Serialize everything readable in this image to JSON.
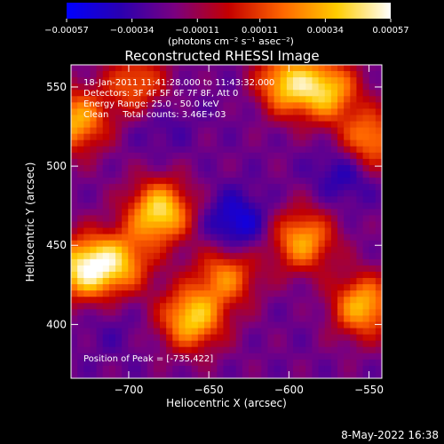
{
  "chart_data": {
    "type": "heatmap",
    "title": "Reconstructed RHESSI Image",
    "xlabel": "Heliocentric X (arcsec)",
    "ylabel": "Heliocentric Y (arcsec)",
    "xlim": [
      -736,
      -542
    ],
    "ylim": [
      366,
      564
    ],
    "x_ticks": [
      -700,
      -650,
      -600,
      -550
    ],
    "y_ticks": [
      400,
      450,
      500,
      550
    ],
    "x_tick_labels": [
      "−700",
      "−650",
      "−600",
      "−550"
    ],
    "y_tick_labels": [
      "400",
      "450",
      "500",
      "550"
    ],
    "colorbar": {
      "range": [
        -0.00057,
        0.00057
      ],
      "ticks": [
        -0.00057,
        -0.00034,
        -0.00011,
        0.00011,
        0.00034,
        0.00057
      ],
      "tick_labels": [
        "−0.00057",
        "−0.00034",
        "−0.00011",
        "0.00011",
        "0.00034",
        "0.00057"
      ],
      "label": "(photons cm⁻² s⁻¹ asec⁻²)",
      "colors": [
        "#0000ff",
        "#2a00b0",
        "#7a0080",
        "#c40000",
        "#ff6600",
        "#ffcc00",
        "#ffffff"
      ]
    },
    "annotations": [
      "18-Jan-2011 11:41:28.000 to 11:43:32.000",
      "Detectors: 3F 4F 5F 6F 7F 8F, Att 0",
      "Energy Range: 25.0 - 50.0 keV",
      "Clean     Total counts: 3.46E+03"
    ],
    "peak_label": "Position of Peak = [-735,422]",
    "peak": [
      -735,
      422
    ],
    "hot_spots": [
      {
        "x": -680,
        "y": 470,
        "value": 0.00057
      },
      {
        "x": -728,
        "y": 434,
        "value": 0.00057
      },
      {
        "x": -660,
        "y": 402,
        "value": 0.0005
      },
      {
        "x": -733,
        "y": 528,
        "value": 0.00042
      },
      {
        "x": -602,
        "y": 552,
        "value": 0.00045
      },
      {
        "x": -575,
        "y": 548,
        "value": 0.00045
      },
      {
        "x": -548,
        "y": 515,
        "value": 0.00038
      },
      {
        "x": -590,
        "y": 452,
        "value": 0.0004
      },
      {
        "x": -552,
        "y": 410,
        "value": 0.00045
      },
      {
        "x": -705,
        "y": 438,
        "value": 0.00034
      },
      {
        "x": -638,
        "y": 430,
        "value": 0.0003
      },
      {
        "x": -695,
        "y": 552,
        "value": 0.00025
      }
    ],
    "cold_spots": [
      {
        "x": -632,
        "y": 462,
        "value": -0.00057
      },
      {
        "x": -562,
        "y": 497,
        "value": -0.0005
      },
      {
        "x": -680,
        "y": 527,
        "value": -0.00034
      },
      {
        "x": -710,
        "y": 395,
        "value": -0.0003
      },
      {
        "x": -620,
        "y": 545,
        "value": -0.0003
      },
      {
        "x": -583,
        "y": 408,
        "value": -0.00025
      }
    ]
  },
  "footer": {
    "timestamp": "8-May-2022 16:38"
  }
}
